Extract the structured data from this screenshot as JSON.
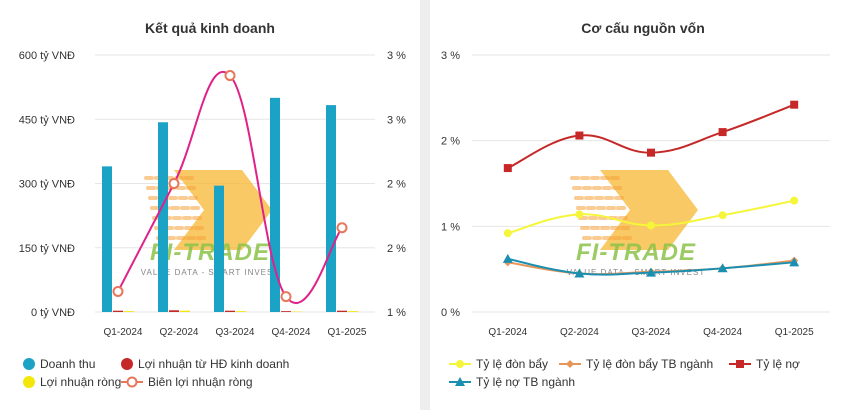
{
  "colors": {
    "revenue": "#1ba3c6",
    "op_profit": "#c62828",
    "net_profit": "#f5e60a",
    "margin": "#e0218a",
    "margin_marker": "#e8765a",
    "leverage": "#f5f53a",
    "leverage_ind": "#e8955a",
    "debt_ratio": "#c62828",
    "debt_ratio_ind": "#1b8fb0"
  },
  "watermark": {
    "brand": "FI-TRADE",
    "tagline": "VALUE DATA - SMART INVEST"
  },
  "chart_data": [
    {
      "type": "bar",
      "title": "Kết quả kinh doanh",
      "categories": [
        "Q1-2024",
        "Q2-2024",
        "Q3-2024",
        "Q4-2024",
        "Q1-2025"
      ],
      "y_ticks": [
        "0 tỷ VNĐ",
        "150 tỷ VNĐ",
        "300 tỷ VNĐ",
        "450 tỷ VNĐ",
        "600 tỷ VNĐ"
      ],
      "y2_ticks": [
        "1 %",
        "2 %",
        "2 %",
        "3 %",
        "3 %"
      ],
      "ylim": [
        0,
        600
      ],
      "y2lim": [
        1,
        3.5
      ],
      "grid": true,
      "legend_position": "bottom",
      "series": [
        {
          "name": "Doanh thu",
          "type": "bar",
          "axis": "left",
          "values": [
            340,
            443,
            295,
            500,
            483
          ]
        },
        {
          "name": "Lợi nhuận từ HĐ kinh doanh",
          "type": "bar",
          "axis": "left",
          "values": [
            3,
            4,
            3,
            2,
            3
          ]
        },
        {
          "name": "Lợi nhuận ròng",
          "type": "bar",
          "axis": "left",
          "values": [
            2,
            3,
            2,
            1,
            2
          ]
        },
        {
          "name": "Biên lợi nhuận ròng",
          "type": "line",
          "axis": "right",
          "values": [
            1.2,
            2.25,
            3.3,
            1.15,
            1.82
          ]
        }
      ]
    },
    {
      "type": "line",
      "title": "Cơ cấu nguồn vốn",
      "categories": [
        "Q1-2024",
        "Q2-2024",
        "Q3-2024",
        "Q4-2024",
        "Q1-2025"
      ],
      "y_ticks": [
        "0 %",
        "1 %",
        "2 %",
        "3 %"
      ],
      "ylim": [
        0,
        3
      ],
      "grid": true,
      "legend_position": "bottom",
      "series": [
        {
          "name": "Tỷ lệ đòn bẩy",
          "values": [
            0.92,
            1.14,
            1.01,
            1.13,
            1.3
          ]
        },
        {
          "name": "Tỷ lệ đòn bẩy TB ngành",
          "values": [
            0.58,
            0.45,
            0.47,
            0.51,
            0.6
          ]
        },
        {
          "name": "Tỷ lệ nợ",
          "values": [
            1.68,
            2.06,
            1.86,
            2.1,
            2.42
          ]
        },
        {
          "name": "Tỷ lệ nợ TB ngành",
          "values": [
            0.62,
            0.45,
            0.46,
            0.51,
            0.58
          ]
        }
      ]
    }
  ]
}
